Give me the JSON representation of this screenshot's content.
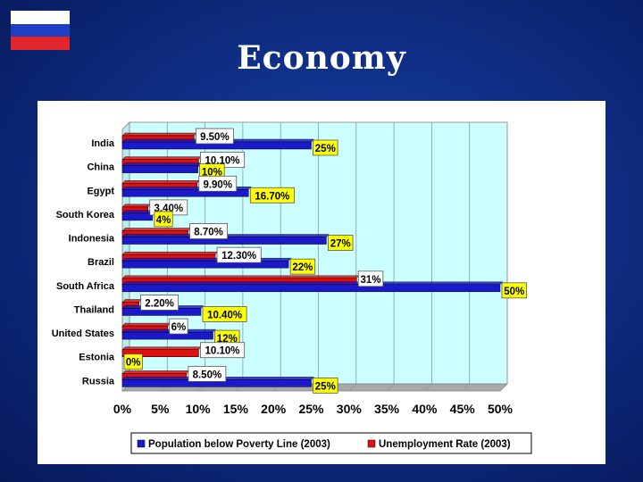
{
  "slide": {
    "title": "Economy",
    "flag": "russia-flag-icon"
  },
  "colors": {
    "background": "#0f2f86",
    "series_poverty": "#1a1acc",
    "series_unemployment": "#e01010",
    "plot_area": "#ccffff",
    "label_yellow": "#ffff00"
  },
  "chart_data": {
    "type": "bar",
    "orientation": "horizontal",
    "categories": [
      "India",
      "China",
      "Egypt",
      "South Korea",
      "Indonesia",
      "Brazil",
      "South Africa",
      "Thailand",
      "United States",
      "Estonia",
      "Russia"
    ],
    "series": [
      {
        "name": "Population below Poverty Line (2003)",
        "values": [
          25,
          10,
          16.7,
          4,
          27,
          22,
          50,
          10.4,
          12,
          0,
          25
        ],
        "labels": [
          "25%",
          "10%",
          "16.70%",
          "4%",
          "27%",
          "22%",
          "50%",
          "10.40%",
          "12%",
          "0%",
          "25%"
        ]
      },
      {
        "name": "Unemployment Rate (2003)",
        "values": [
          9.5,
          10.1,
          9.9,
          3.4,
          8.7,
          12.3,
          31,
          2.2,
          6,
          10.1,
          8.5
        ],
        "labels": [
          "9.50%",
          "10.10%",
          "9.90%",
          "3.40%",
          "8.70%",
          "12.30%",
          "31%",
          "2.20%",
          "6%",
          "10.10%",
          "8.50%"
        ]
      }
    ],
    "xlim": [
      0,
      50
    ],
    "xticks": [
      "0%",
      "5%",
      "10%",
      "15%",
      "20%",
      "25%",
      "30%",
      "35%",
      "40%",
      "45%",
      "50%"
    ],
    "grid": true,
    "legend_position": "bottom"
  }
}
